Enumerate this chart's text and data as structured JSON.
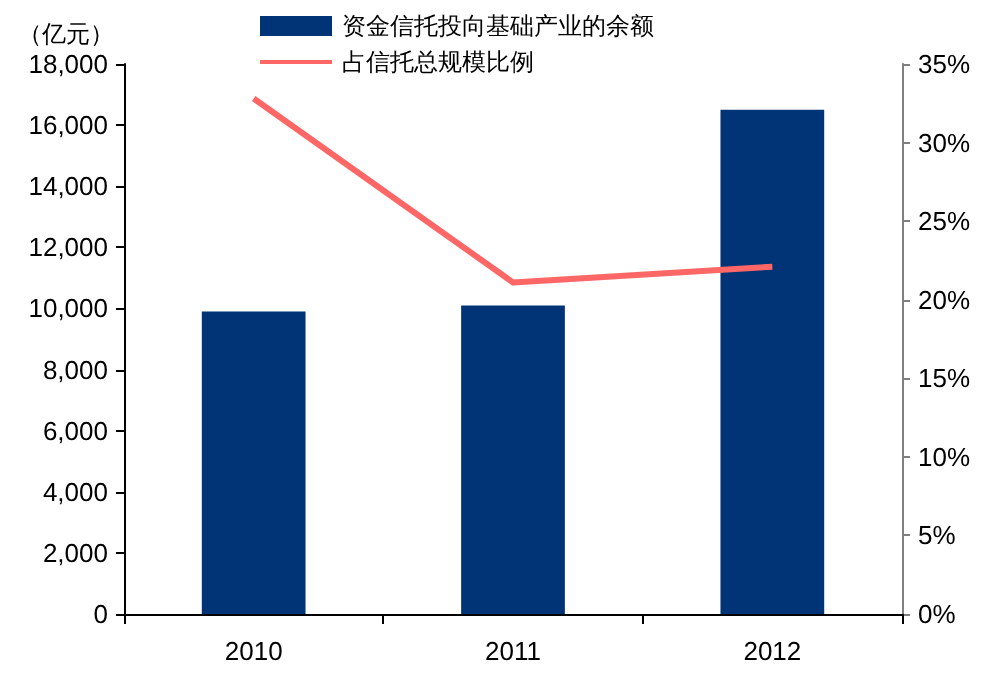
{
  "chart_data": {
    "type": "bar",
    "ylabel": "（亿元）",
    "categories": [
      "2010",
      "2011",
      "2012"
    ],
    "series": [
      {
        "name": "资金信托投向基础产业的余额",
        "color": "#003476",
        "values": [
          9900,
          10100,
          16500
        ]
      },
      {
        "name": "占信托总规模比例",
        "type": "line",
        "axis": "y2",
        "color": "#ff6666",
        "values": [
          32.8,
          21.1,
          22.1
        ]
      }
    ],
    "ylim": [
      0,
      18000
    ],
    "yticks": [
      {
        "value": 0,
        "label": "0"
      },
      {
        "value": 2000,
        "label": "2,000"
      },
      {
        "value": 4000,
        "label": "4,000"
      },
      {
        "value": 6000,
        "label": "6,000"
      },
      {
        "value": 8000,
        "label": "8,000"
      },
      {
        "value": 10000,
        "label": "10,000"
      },
      {
        "value": 12000,
        "label": "12,000"
      },
      {
        "value": 14000,
        "label": "14,000"
      },
      {
        "value": 16000,
        "label": "16,000"
      },
      {
        "value": 18000,
        "label": "18,000"
      }
    ],
    "y2lim": [
      0,
      35
    ],
    "y2ticks": [
      {
        "value": 0,
        "label": "0%"
      },
      {
        "value": 5,
        "label": "5%"
      },
      {
        "value": 10,
        "label": "10%"
      },
      {
        "value": 15,
        "label": "15%"
      },
      {
        "value": 20,
        "label": "20%"
      },
      {
        "value": 25,
        "label": "25%"
      },
      {
        "value": 30,
        "label": "30%"
      },
      {
        "value": 35,
        "label": "35%"
      }
    ],
    "legend": "top",
    "grid": false,
    "marker": "none"
  }
}
